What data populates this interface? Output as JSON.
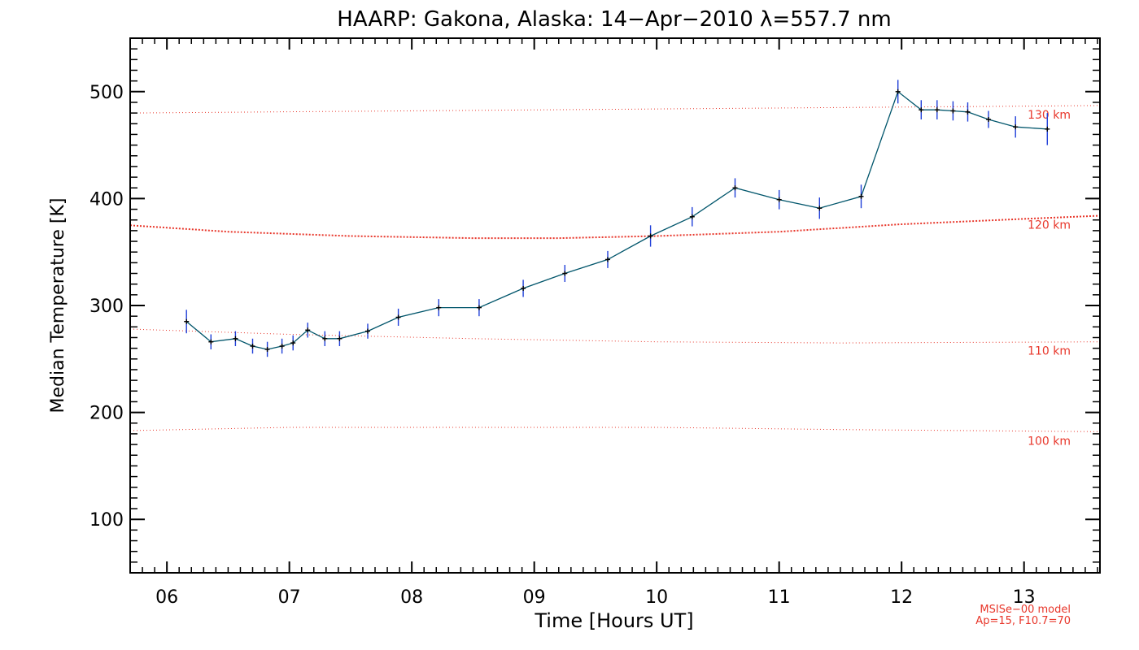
{
  "chart_data": {
    "type": "line",
    "title": "HAARP: Gakona,  Alaska: 14−Apr−2010 λ=557.7 nm",
    "xlabel": "Time [Hours UT]",
    "ylabel": "Median Temperature [K]",
    "xlim": [
      5.7,
      13.62
    ],
    "ylim": [
      50,
      550
    ],
    "xticks": [
      6,
      7,
      8,
      9,
      10,
      11,
      12,
      13
    ],
    "xtick_labels": [
      "06",
      "07",
      "08",
      "09",
      "10",
      "11",
      "12",
      "13"
    ],
    "yticks": [
      100,
      200,
      300,
      400,
      500
    ],
    "ytick_labels": [
      "100",
      "200",
      "300",
      "400",
      "500"
    ],
    "grid": false,
    "series": [
      {
        "x": [
          6.16,
          6.36,
          6.56,
          6.7,
          6.82,
          6.94,
          7.03,
          7.15,
          7.29,
          7.41,
          7.64,
          7.89,
          8.22,
          8.55,
          8.91,
          9.25,
          9.6,
          9.95,
          10.29,
          10.64,
          11.0,
          11.33,
          11.67,
          11.97,
          12.16,
          12.29,
          12.42,
          12.54,
          12.71,
          12.93,
          13.19
        ],
        "y": [
          285,
          266,
          269,
          262,
          259,
          262,
          265,
          277,
          269,
          269,
          276,
          289,
          298,
          298,
          316,
          330,
          343,
          365,
          383,
          410,
          399,
          391,
          402,
          500,
          483,
          483,
          482,
          481,
          474,
          467,
          465
        ],
        "error": [
          11,
          7,
          7,
          7,
          7,
          7,
          7,
          7,
          7,
          7,
          7,
          8,
          8,
          8,
          8,
          8,
          8,
          10,
          9,
          9,
          9,
          10,
          11,
          11,
          9,
          9,
          9,
          9,
          8,
          10,
          15
        ],
        "line_color": "#00556b",
        "marker_color": "#000000",
        "error_color": "#1f3fd8"
      }
    ],
    "reference_lines": [
      {
        "label": "130 km",
        "x": [
          5.7,
          13.62
        ],
        "y": [
          480,
          487
        ],
        "color": "#e8362a",
        "weight": "light"
      },
      {
        "label": "120 km",
        "x": [
          5.7,
          6.5,
          7.5,
          8.5,
          9.2,
          10.0,
          11.0,
          12.0,
          13.0,
          13.62
        ],
        "y": [
          375,
          369,
          365,
          363,
          363,
          365,
          369,
          376,
          381,
          384
        ],
        "color": "#e8362a",
        "weight": "heavy"
      },
      {
        "label": "110 km",
        "x": [
          5.7,
          7.0,
          8.5,
          10.0,
          11.5,
          13.62
        ],
        "y": [
          278,
          273,
          269,
          266,
          265,
          266
        ],
        "color": "#e8362a",
        "weight": "light"
      },
      {
        "label": "100 km",
        "x": [
          5.7,
          7.0,
          8.5,
          10.0,
          11.5,
          13.62
        ],
        "y": [
          183,
          186,
          186,
          186,
          184,
          182
        ],
        "color": "#e8362a",
        "weight": "light"
      }
    ],
    "model_note": [
      "MSISe−00 model",
      "Ap=15, F10.7=70"
    ],
    "colors": {
      "model": "#e8362a",
      "axes": "#000000"
    }
  }
}
